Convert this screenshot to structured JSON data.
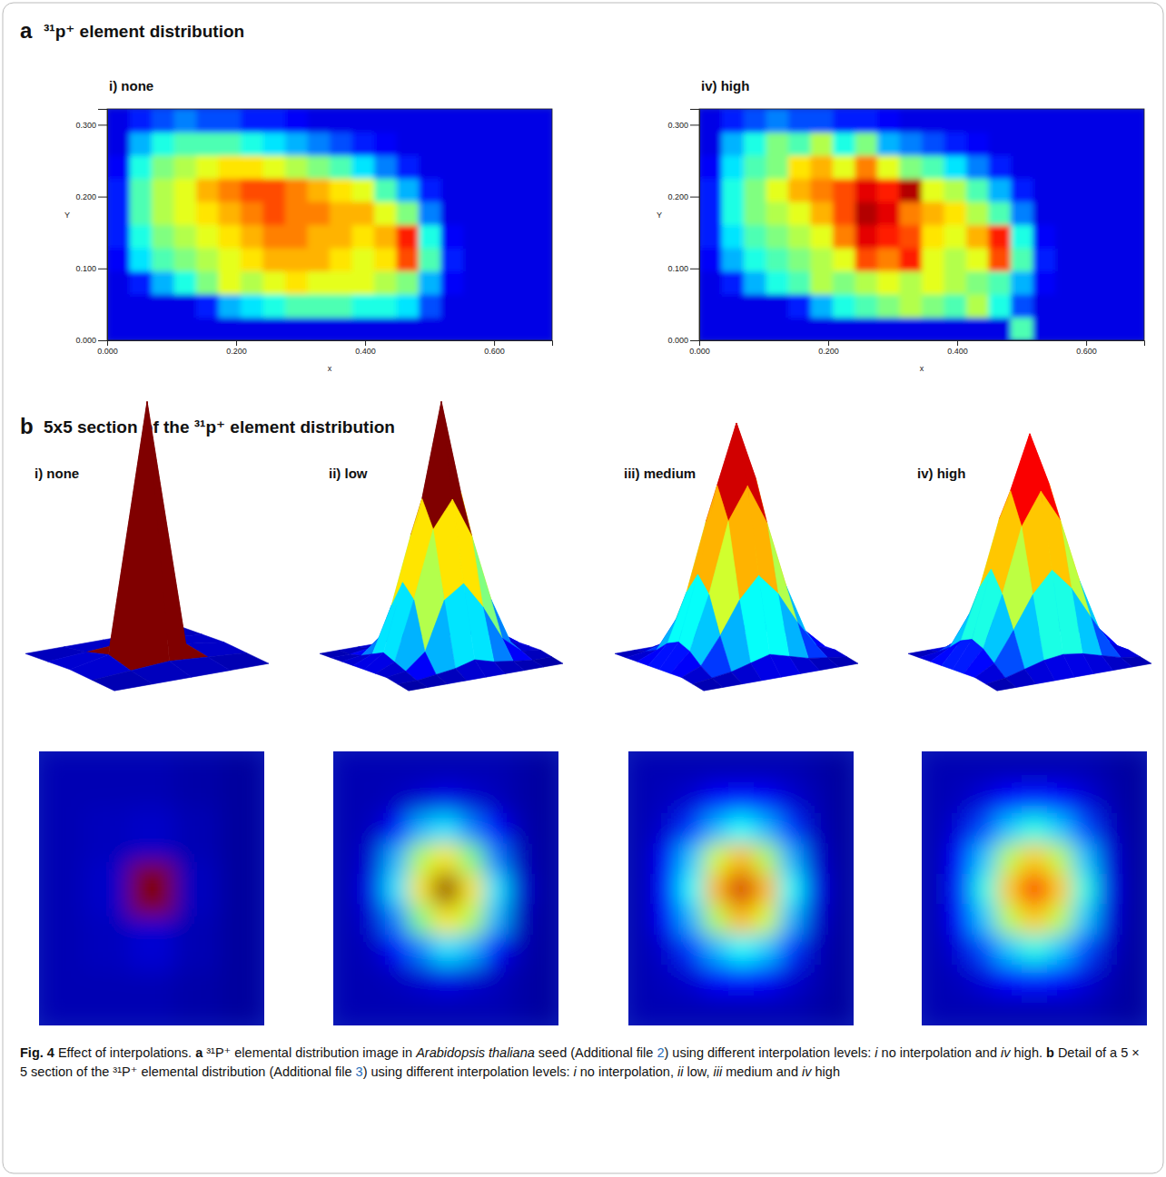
{
  "panels": [
    {
      "letter": "a",
      "title": "³¹p⁺ element distribution"
    },
    {
      "letter": "b",
      "title": "5x5 section of the ³¹p⁺ element distribution"
    }
  ],
  "chart_data": [
    {
      "type": "heatmap",
      "panel": "a",
      "title": "i) none",
      "x_label": "x",
      "y_label": "Y",
      "xlim": [
        0,
        0.69
      ],
      "ylim": [
        0,
        0.322
      ],
      "xticks": [
        {
          "value": 0,
          "label": "0.000"
        },
        {
          "value": 0.2,
          "label": "0.200"
        },
        {
          "value": 0.4,
          "label": "0.400"
        },
        {
          "value": 0.6,
          "label": "0.600"
        }
      ],
      "yticks": [
        {
          "value": 0,
          "label": "0.000"
        },
        {
          "value": 0.1,
          "label": "0.100"
        },
        {
          "value": 0.2,
          "label": "0.200"
        },
        {
          "value": 0.3,
          "label": "0.300"
        }
      ],
      "zlim": [
        0,
        1
      ],
      "x_edges": [
        0,
        0.0345,
        0.069,
        0.1035,
        0.138,
        0.1725,
        0.207,
        0.2415,
        0.276,
        0.3105,
        0.345,
        0.3795,
        0.414,
        0.4485,
        0.483,
        0.5175,
        0.552,
        0.5865,
        0.621,
        0.6555,
        0.69
      ],
      "y_edges": [
        0,
        0.0322,
        0.0644,
        0.0966,
        0.1288,
        0.161,
        0.1932,
        0.2254,
        0.2576,
        0.2898,
        0.322
      ],
      "cells": [
        [
          0.1,
          0.1,
          0.1,
          0.1,
          0.1,
          0.1,
          0.1,
          0.1,
          0.1,
          0.1,
          0.1,
          0.1,
          0.1,
          0.1,
          0.1,
          0.1,
          0.1,
          0.1,
          0.1,
          0.1
        ],
        [
          0.1,
          0.1,
          0.1,
          0.1,
          0.15,
          0.3,
          0.35,
          0.4,
          0.45,
          0.45,
          0.45,
          0.4,
          0.4,
          0.35,
          0.2,
          0.1,
          0.1,
          0.1,
          0.1,
          0.1
        ],
        [
          0.1,
          0.15,
          0.3,
          0.4,
          0.5,
          0.6,
          0.55,
          0.6,
          0.65,
          0.6,
          0.6,
          0.6,
          0.55,
          0.5,
          0.3,
          0.12,
          0.1,
          0.1,
          0.1,
          0.1
        ],
        [
          0.12,
          0.35,
          0.45,
          0.5,
          0.55,
          0.6,
          0.65,
          0.7,
          0.7,
          0.7,
          0.65,
          0.6,
          0.65,
          0.8,
          0.45,
          0.15,
          0.1,
          0.1,
          0.1,
          0.1
        ],
        [
          0.15,
          0.4,
          0.5,
          0.55,
          0.6,
          0.65,
          0.7,
          0.75,
          0.75,
          0.7,
          0.7,
          0.65,
          0.7,
          0.85,
          0.4,
          0.12,
          0.1,
          0.1,
          0.1,
          0.1
        ],
        [
          0.15,
          0.45,
          0.55,
          0.6,
          0.65,
          0.7,
          0.75,
          0.8,
          0.75,
          0.75,
          0.7,
          0.7,
          0.6,
          0.5,
          0.25,
          0.1,
          0.1,
          0.1,
          0.1,
          0.1
        ],
        [
          0.15,
          0.45,
          0.55,
          0.6,
          0.7,
          0.75,
          0.8,
          0.8,
          0.75,
          0.7,
          0.65,
          0.6,
          0.45,
          0.3,
          0.15,
          0.1,
          0.1,
          0.1,
          0.1,
          0.1
        ],
        [
          0.12,
          0.4,
          0.5,
          0.55,
          0.6,
          0.65,
          0.65,
          0.6,
          0.55,
          0.5,
          0.45,
          0.35,
          0.25,
          0.15,
          0.1,
          0.1,
          0.1,
          0.1,
          0.1,
          0.1
        ],
        [
          0.1,
          0.3,
          0.4,
          0.45,
          0.45,
          0.45,
          0.4,
          0.35,
          0.3,
          0.25,
          0.2,
          0.15,
          0.12,
          0.1,
          0.1,
          0.1,
          0.1,
          0.1,
          0.1,
          0.1
        ],
        [
          0.1,
          0.15,
          0.2,
          0.25,
          0.2,
          0.2,
          0.15,
          0.15,
          0.12,
          0.1,
          0.1,
          0.1,
          0.1,
          0.1,
          0.1,
          0.1,
          0.1,
          0.1,
          0.1,
          0.1
        ]
      ]
    },
    {
      "type": "heatmap",
      "panel": "a",
      "title": "iv) high",
      "x_label": "x",
      "y_label": "Y",
      "xlim": [
        0,
        0.69
      ],
      "ylim": [
        0,
        0.322
      ],
      "xticks": [
        {
          "value": 0,
          "label": "0.000"
        },
        {
          "value": 0.2,
          "label": "0.200"
        },
        {
          "value": 0.4,
          "label": "0.400"
        },
        {
          "value": 0.6,
          "label": "0.600"
        }
      ],
      "yticks": [
        {
          "value": 0,
          "label": "0.000"
        },
        {
          "value": 0.1,
          "label": "0.100"
        },
        {
          "value": 0.2,
          "label": "0.200"
        },
        {
          "value": 0.3,
          "label": "0.300"
        }
      ],
      "zlim": [
        0,
        1
      ],
      "x_edges": [
        0,
        0.0345,
        0.069,
        0.1035,
        0.138,
        0.1725,
        0.207,
        0.2415,
        0.276,
        0.3105,
        0.345,
        0.3795,
        0.414,
        0.4485,
        0.483,
        0.5175,
        0.552,
        0.5865,
        0.621,
        0.6555,
        0.69
      ],
      "y_edges": [
        0,
        0.0322,
        0.0644,
        0.0966,
        0.1288,
        0.161,
        0.1932,
        0.2254,
        0.2576,
        0.2898,
        0.322
      ],
      "cells": [
        [
          0.1,
          0.1,
          0.1,
          0.1,
          0.1,
          0.1,
          0.1,
          0.1,
          0.1,
          0.1,
          0.1,
          0.1,
          0.1,
          0.1,
          0.45,
          0.1,
          0.1,
          0.1,
          0.1,
          0.1
        ],
        [
          0.1,
          0.1,
          0.1,
          0.1,
          0.15,
          0.3,
          0.4,
          0.45,
          0.5,
          0.55,
          0.5,
          0.45,
          0.55,
          0.4,
          0.2,
          0.1,
          0.1,
          0.1,
          0.1,
          0.1
        ],
        [
          0.1,
          0.15,
          0.3,
          0.4,
          0.45,
          0.55,
          0.5,
          0.55,
          0.6,
          0.55,
          0.6,
          0.55,
          0.5,
          0.45,
          0.3,
          0.12,
          0.1,
          0.1,
          0.1,
          0.1
        ],
        [
          0.12,
          0.3,
          0.4,
          0.45,
          0.5,
          0.55,
          0.6,
          0.8,
          0.75,
          0.85,
          0.6,
          0.55,
          0.6,
          0.8,
          0.45,
          0.15,
          0.1,
          0.1,
          0.1,
          0.1
        ],
        [
          0.15,
          0.35,
          0.45,
          0.5,
          0.55,
          0.6,
          0.75,
          0.9,
          0.85,
          0.8,
          0.65,
          0.6,
          0.7,
          0.85,
          0.4,
          0.12,
          0.1,
          0.1,
          0.1,
          0.1
        ],
        [
          0.15,
          0.4,
          0.5,
          0.55,
          0.6,
          0.7,
          0.8,
          0.95,
          0.9,
          0.75,
          0.7,
          0.65,
          0.55,
          0.45,
          0.25,
          0.1,
          0.1,
          0.1,
          0.1,
          0.1
        ],
        [
          0.15,
          0.4,
          0.5,
          0.6,
          0.7,
          0.75,
          0.8,
          0.9,
          0.85,
          0.95,
          0.6,
          0.55,
          0.45,
          0.3,
          0.15,
          0.1,
          0.1,
          0.1,
          0.1,
          0.1
        ],
        [
          0.12,
          0.35,
          0.45,
          0.5,
          0.65,
          0.7,
          0.6,
          0.75,
          0.6,
          0.5,
          0.45,
          0.35,
          0.25,
          0.15,
          0.1,
          0.1,
          0.1,
          0.1,
          0.1,
          0.1
        ],
        [
          0.1,
          0.3,
          0.4,
          0.5,
          0.45,
          0.55,
          0.4,
          0.5,
          0.3,
          0.25,
          0.2,
          0.15,
          0.12,
          0.1,
          0.1,
          0.1,
          0.1,
          0.1,
          0.1,
          0.1
        ],
        [
          0.1,
          0.15,
          0.2,
          0.25,
          0.2,
          0.2,
          0.15,
          0.15,
          0.12,
          0.1,
          0.1,
          0.1,
          0.1,
          0.1,
          0.1,
          0.1,
          0.1,
          0.1,
          0.1,
          0.1
        ]
      ]
    },
    {
      "type": "surface",
      "panel": "b",
      "title": "i) none",
      "zlim": [
        0,
        1
      ],
      "tick_labels": false,
      "cells": [
        [
          0.05,
          0.05,
          0.05,
          0.04,
          0.03
        ],
        [
          0.05,
          0.06,
          0.08,
          0.05,
          0.03
        ],
        [
          0.05,
          0.07,
          1.0,
          0.06,
          0.03
        ],
        [
          0.05,
          0.06,
          0.07,
          0.05,
          0.03
        ],
        [
          0.05,
          0.05,
          0.05,
          0.04,
          0.03
        ]
      ]
    },
    {
      "type": "surface",
      "panel": "b",
      "title": "ii) low",
      "zlim": [
        0,
        1
      ],
      "tick_labels": false,
      "cells": [
        [
          0.05,
          0.05,
          0.05,
          0.05,
          0.05,
          0.05,
          0.05,
          0.04,
          0.03
        ],
        [
          0.05,
          0.05,
          0.06,
          0.08,
          0.1,
          0.08,
          0.06,
          0.04,
          0.03
        ],
        [
          0.05,
          0.06,
          0.12,
          0.25,
          0.35,
          0.3,
          0.12,
          0.05,
          0.03
        ],
        [
          0.05,
          0.08,
          0.25,
          0.5,
          0.65,
          0.55,
          0.3,
          0.06,
          0.03
        ],
        [
          0.05,
          0.1,
          0.35,
          0.65,
          1.0,
          0.65,
          0.35,
          0.08,
          0.03
        ],
        [
          0.05,
          0.08,
          0.3,
          0.55,
          0.65,
          0.5,
          0.25,
          0.06,
          0.03
        ],
        [
          0.05,
          0.06,
          0.12,
          0.3,
          0.35,
          0.25,
          0.12,
          0.05,
          0.03
        ],
        [
          0.05,
          0.05,
          0.06,
          0.08,
          0.1,
          0.08,
          0.06,
          0.04,
          0.03
        ],
        [
          0.05,
          0.05,
          0.05,
          0.05,
          0.05,
          0.05,
          0.05,
          0.04,
          0.03
        ]
      ]
    },
    {
      "type": "surface",
      "panel": "b",
      "title": "iii) medium",
      "zlim": [
        0,
        1
      ],
      "tick_labels": false,
      "cells": [
        [
          0.05,
          0.05,
          0.05,
          0.05,
          0.05,
          0.05,
          0.05,
          0.04,
          0.03
        ],
        [
          0.05,
          0.06,
          0.08,
          0.12,
          0.14,
          0.12,
          0.08,
          0.05,
          0.03
        ],
        [
          0.05,
          0.08,
          0.18,
          0.3,
          0.38,
          0.32,
          0.18,
          0.06,
          0.03
        ],
        [
          0.05,
          0.12,
          0.3,
          0.55,
          0.7,
          0.58,
          0.3,
          0.08,
          0.03
        ],
        [
          0.05,
          0.14,
          0.38,
          0.7,
          0.92,
          0.7,
          0.38,
          0.1,
          0.03
        ],
        [
          0.05,
          0.12,
          0.32,
          0.58,
          0.7,
          0.55,
          0.3,
          0.08,
          0.03
        ],
        [
          0.05,
          0.08,
          0.18,
          0.3,
          0.38,
          0.3,
          0.18,
          0.06,
          0.03
        ],
        [
          0.05,
          0.06,
          0.08,
          0.12,
          0.14,
          0.12,
          0.08,
          0.05,
          0.03
        ],
        [
          0.05,
          0.05,
          0.05,
          0.05,
          0.05,
          0.05,
          0.05,
          0.04,
          0.03
        ]
      ]
    },
    {
      "type": "surface",
      "panel": "b",
      "title": "iv) high",
      "zlim": [
        0,
        1
      ],
      "tick_labels": false,
      "cells": [
        [
          0.05,
          0.05,
          0.05,
          0.05,
          0.05,
          0.05,
          0.05,
          0.04,
          0.03
        ],
        [
          0.05,
          0.06,
          0.09,
          0.13,
          0.15,
          0.13,
          0.09,
          0.05,
          0.03
        ],
        [
          0.05,
          0.09,
          0.2,
          0.32,
          0.4,
          0.32,
          0.2,
          0.07,
          0.03
        ],
        [
          0.05,
          0.13,
          0.32,
          0.56,
          0.68,
          0.56,
          0.32,
          0.09,
          0.03
        ],
        [
          0.05,
          0.15,
          0.4,
          0.68,
          0.88,
          0.68,
          0.4,
          0.1,
          0.03
        ],
        [
          0.05,
          0.13,
          0.32,
          0.56,
          0.68,
          0.56,
          0.32,
          0.09,
          0.03
        ],
        [
          0.05,
          0.09,
          0.2,
          0.32,
          0.4,
          0.32,
          0.2,
          0.07,
          0.03
        ],
        [
          0.05,
          0.06,
          0.09,
          0.13,
          0.15,
          0.13,
          0.09,
          0.05,
          0.03
        ],
        [
          0.05,
          0.05,
          0.05,
          0.05,
          0.05,
          0.05,
          0.05,
          0.04,
          0.03
        ]
      ]
    }
  ],
  "caption": {
    "runs": [
      {
        "text": "Fig. 4",
        "style": "bold"
      },
      {
        "text": "  Effect of interpolations. ",
        "style": "normal"
      },
      {
        "text": "a",
        "style": "bold"
      },
      {
        "text": " ³¹P⁺ elemental distribution image in ",
        "style": "normal"
      },
      {
        "text": "Arabidopsis thaliana",
        "style": "italic"
      },
      {
        "text": " seed (Additional file ",
        "style": "normal"
      },
      {
        "text": "2",
        "style": "link"
      },
      {
        "text": ") using different interpolation levels: ",
        "style": "normal"
      },
      {
        "text": "i",
        "style": "italic"
      },
      {
        "text": " no interpolation and ",
        "style": "normal"
      },
      {
        "text": "iv",
        "style": "italic"
      },
      {
        "text": " high. ",
        "style": "normal"
      },
      {
        "text": "b",
        "style": "bold"
      },
      {
        "text": " Detail of a 5 × 5 section of the ³¹P⁺ elemental distribution (Additional file ",
        "style": "normal"
      },
      {
        "text": "3",
        "style": "link"
      },
      {
        "text": ") using different interpolation levels: ",
        "style": "normal"
      },
      {
        "text": "i",
        "style": "italic"
      },
      {
        "text": " no interpolation, ",
        "style": "normal"
      },
      {
        "text": "ii",
        "style": "italic"
      },
      {
        "text": " low, ",
        "style": "normal"
      },
      {
        "text": "iii",
        "style": "italic"
      },
      {
        "text": " medium and ",
        "style": "normal"
      },
      {
        "text": "iv",
        "style": "italic"
      },
      {
        "text": " high",
        "style": "normal"
      }
    ]
  }
}
